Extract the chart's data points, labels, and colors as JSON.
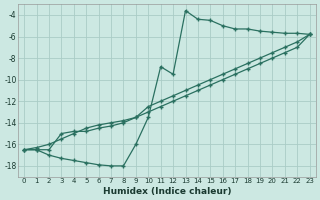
{
  "xlabel": "Humidex (Indice chaleur)",
  "bg_color": "#cce8e2",
  "grid_color": "#aaccc6",
  "line_color": "#2a7060",
  "xlim": [
    -0.5,
    23.5
  ],
  "ylim": [
    -19.0,
    -3.0
  ],
  "yticks": [
    -18,
    -16,
    -14,
    -12,
    -10,
    -8,
    -6,
    -4
  ],
  "xticks": [
    0,
    1,
    2,
    3,
    4,
    5,
    6,
    7,
    8,
    9,
    10,
    11,
    12,
    13,
    14,
    15,
    16,
    17,
    18,
    19,
    20,
    21,
    22,
    23
  ],
  "line1_x": [
    0,
    1,
    2,
    3,
    4,
    5,
    6,
    7,
    8,
    9,
    10,
    11,
    12,
    13,
    14,
    15,
    16,
    17,
    18,
    19,
    20,
    21,
    22,
    23
  ],
  "line1_y": [
    -16.5,
    -16.5,
    -17.0,
    -17.3,
    -17.5,
    -17.7,
    -17.9,
    -18.0,
    -18.0,
    -16.0,
    -13.5,
    -8.8,
    -9.5,
    -3.6,
    -4.4,
    -4.5,
    -5.0,
    -5.3,
    -5.3,
    -5.5,
    -5.6,
    -5.7,
    -5.7,
    -5.8
  ],
  "line2_x": [
    0,
    1,
    2,
    3,
    4,
    5,
    6,
    7,
    8,
    9,
    10,
    11,
    12,
    13,
    14,
    15,
    16,
    17,
    18,
    19,
    20,
    21,
    22,
    23
  ],
  "line2_y": [
    -16.5,
    -16.5,
    -16.5,
    -15.0,
    -14.8,
    -14.8,
    -14.5,
    -14.3,
    -14.0,
    -13.5,
    -12.5,
    -12.0,
    -11.5,
    -11.0,
    -10.5,
    -10.0,
    -9.5,
    -9.0,
    -8.5,
    -8.0,
    -7.5,
    -7.0,
    -6.5,
    -5.8
  ],
  "line3_x": [
    0,
    1,
    2,
    3,
    4,
    5,
    6,
    7,
    8,
    9,
    10,
    11,
    12,
    13,
    14,
    15,
    16,
    17,
    18,
    19,
    20,
    21,
    22,
    23
  ],
  "line3_y": [
    -16.5,
    -16.3,
    -16.0,
    -15.5,
    -15.0,
    -14.5,
    -14.2,
    -14.0,
    -13.8,
    -13.5,
    -13.0,
    -12.5,
    -12.0,
    -11.5,
    -11.0,
    -10.5,
    -10.0,
    -9.5,
    -9.0,
    -8.5,
    -8.0,
    -7.5,
    -7.0,
    -5.8
  ]
}
